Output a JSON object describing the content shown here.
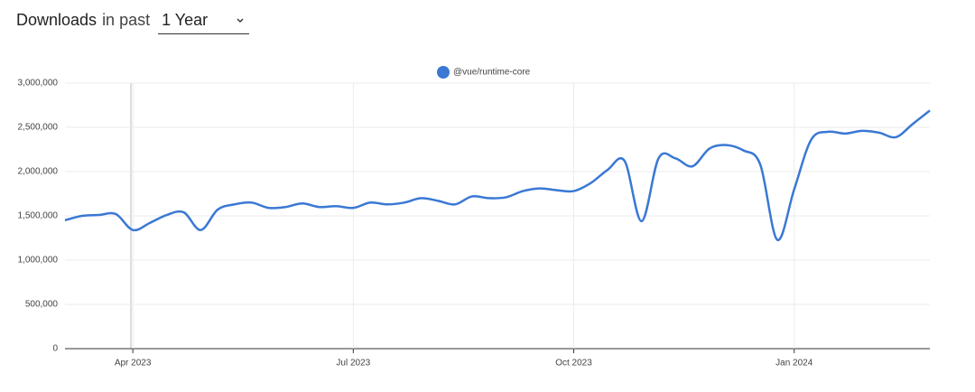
{
  "header": {
    "title": "Downloads",
    "subtitle": "in past",
    "period": "1 Year"
  },
  "chart_data": {
    "type": "line",
    "categories": [
      null,
      null,
      null,
      null,
      "Apr 2023",
      null,
      null,
      null,
      null,
      null,
      null,
      null,
      null,
      null,
      null,
      null,
      null,
      "Jul 2023",
      null,
      null,
      null,
      null,
      null,
      null,
      null,
      null,
      null,
      null,
      null,
      null,
      "Oct 2023",
      null,
      null,
      null,
      null,
      null,
      null,
      null,
      null,
      null,
      null,
      null,
      null,
      "Jan 2024",
      null,
      null,
      null,
      null,
      null,
      null,
      null,
      null
    ],
    "series": [
      {
        "name": "@vue/runtime-core",
        "color": "#3a78d4",
        "values": [
          1450000,
          1500000,
          1510000,
          1520000,
          1340000,
          1420000,
          1510000,
          1540000,
          1340000,
          1570000,
          1630000,
          1650000,
          1590000,
          1600000,
          1640000,
          1600000,
          1610000,
          1590000,
          1650000,
          1630000,
          1650000,
          1700000,
          1670000,
          1630000,
          1720000,
          1700000,
          1710000,
          1780000,
          1810000,
          1790000,
          1780000,
          1870000,
          2020000,
          2120000,
          1440000,
          2150000,
          2150000,
          2060000,
          2260000,
          2300000,
          2240000,
          2080000,
          1230000,
          1800000,
          2360000,
          2450000,
          2430000,
          2460000,
          2440000,
          2390000,
          2540000,
          2690000
        ]
      }
    ],
    "ylim": [
      0,
      3000000
    ],
    "yticks": [
      {
        "value": 0,
        "label": "0"
      },
      {
        "value": 500000,
        "label": "500,000"
      },
      {
        "value": 1000000,
        "label": "1,000,000"
      },
      {
        "value": 1500000,
        "label": "1,500,000"
      },
      {
        "value": 2000000,
        "label": "2,000,000"
      },
      {
        "value": 2500000,
        "label": "2,500,000"
      },
      {
        "value": 3000000,
        "label": "3,000,000"
      }
    ],
    "grid": true,
    "legend": "top"
  }
}
